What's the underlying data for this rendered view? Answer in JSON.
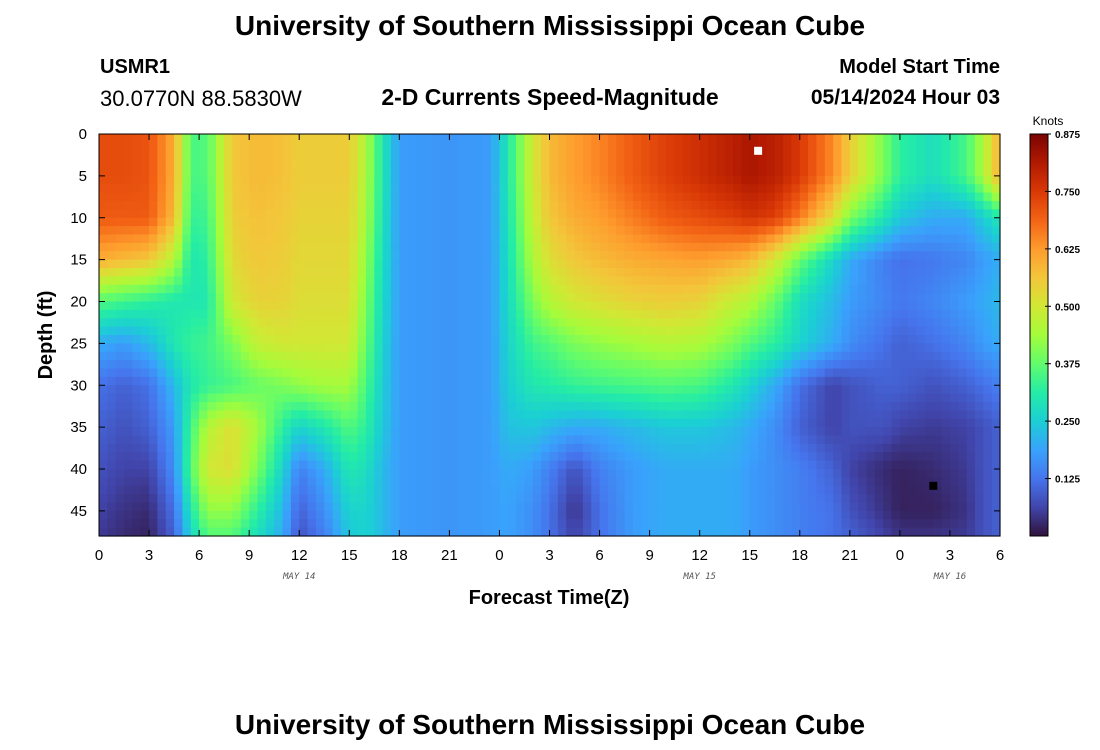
{
  "header": {
    "title": "University of Southern Mississippi Ocean Cube",
    "station_id": "USMR1",
    "coords": "30.0770N  88.5830W",
    "subtitle": "2-D Currents Speed-Magnitude",
    "model_start_label": "Model Start Time",
    "model_start_value": "05/14/2024 Hour 03"
  },
  "footer": {
    "title": "University of Southern Mississippi Ocean Cube"
  },
  "colors": {
    "ramp": [
      "#30123b",
      "#4145ab",
      "#4675ed",
      "#39a2fc",
      "#1bcfd4",
      "#24eca6",
      "#61fc6c",
      "#a4fc3b",
      "#d1e834",
      "#f3c63a",
      "#fe9b2d",
      "#f36315",
      "#d93806",
      "#b11901",
      "#7a0402"
    ],
    "marker_max": "#ffffff",
    "marker_min": "#000000"
  },
  "chart_data": {
    "type": "heatmap",
    "xlabel": "Forecast Time(Z)",
    "ylabel": "Depth (ft)",
    "x_hours": [
      0,
      3,
      6,
      9,
      12,
      15,
      18,
      21,
      24,
      27,
      30,
      33,
      36,
      39,
      42,
      45,
      48,
      51,
      54
    ],
    "x_tick_labels": [
      "0",
      "3",
      "6",
      "9",
      "12",
      "15",
      "18",
      "21",
      "0",
      "3",
      "6",
      "9",
      "12",
      "15",
      "18",
      "21",
      "0",
      "3",
      "6"
    ],
    "date_labels": [
      {
        "text": "MAY 14",
        "hour": 12
      },
      {
        "text": "MAY 15",
        "hour": 36
      },
      {
        "text": "MAY 16",
        "hour": 51
      }
    ],
    "y_ticks": [
      0,
      5,
      10,
      15,
      20,
      25,
      30,
      35,
      40,
      45
    ],
    "ylim": [
      0,
      48
    ],
    "xlim": [
      0,
      54
    ],
    "value_unit": "Knots",
    "colorbar_ticks": [
      0.125,
      0.25,
      0.375,
      0.5,
      0.625,
      0.75,
      0.875
    ],
    "colorbar_tick_labels": [
      "0.125",
      "0.250",
      "0.375",
      "0.500",
      "0.625",
      "0.750",
      "0.875"
    ],
    "vmin": 0.0,
    "vmax": 0.875,
    "depths": [
      0,
      5,
      10,
      15,
      20,
      25,
      30,
      35,
      40,
      45,
      48
    ],
    "hours": [
      0,
      1.5,
      3,
      4.5,
      5.5,
      6.5,
      8,
      9.5,
      11,
      12,
      13.5,
      15,
      16,
      17,
      18,
      21,
      23.5,
      24.5,
      26,
      27,
      28.5,
      30,
      32,
      34,
      36,
      38,
      39,
      40.5,
      42,
      44,
      45,
      47,
      48,
      50,
      52,
      53,
      54
    ],
    "speeds": [
      [
        0.72,
        0.72,
        0.71,
        0.6,
        0.35,
        0.36,
        0.56,
        0.58,
        0.57,
        0.55,
        0.55,
        0.55,
        0.45,
        0.3,
        0.18,
        0.17,
        0.18,
        0.3,
        0.5,
        0.58,
        0.62,
        0.65,
        0.7,
        0.74,
        0.77,
        0.8,
        0.82,
        0.8,
        0.75,
        0.64,
        0.55,
        0.4,
        0.32,
        0.28,
        0.35,
        0.45,
        0.6
      ],
      [
        0.72,
        0.72,
        0.71,
        0.6,
        0.35,
        0.36,
        0.56,
        0.58,
        0.57,
        0.55,
        0.55,
        0.55,
        0.45,
        0.3,
        0.18,
        0.17,
        0.18,
        0.3,
        0.5,
        0.58,
        0.62,
        0.65,
        0.7,
        0.74,
        0.77,
        0.8,
        0.82,
        0.8,
        0.75,
        0.64,
        0.55,
        0.4,
        0.32,
        0.28,
        0.35,
        0.45,
        0.6
      ],
      [
        0.7,
        0.7,
        0.7,
        0.58,
        0.33,
        0.34,
        0.55,
        0.57,
        0.56,
        0.54,
        0.54,
        0.54,
        0.44,
        0.29,
        0.18,
        0.17,
        0.18,
        0.29,
        0.48,
        0.56,
        0.6,
        0.62,
        0.66,
        0.7,
        0.72,
        0.74,
        0.76,
        0.74,
        0.66,
        0.52,
        0.4,
        0.3,
        0.24,
        0.2,
        0.2,
        0.25,
        0.3
      ],
      [
        0.6,
        0.58,
        0.56,
        0.46,
        0.3,
        0.32,
        0.53,
        0.56,
        0.55,
        0.53,
        0.53,
        0.53,
        0.42,
        0.28,
        0.18,
        0.17,
        0.18,
        0.28,
        0.45,
        0.52,
        0.56,
        0.58,
        0.6,
        0.61,
        0.62,
        0.6,
        0.58,
        0.5,
        0.38,
        0.26,
        0.2,
        0.14,
        0.12,
        0.13,
        0.15,
        0.18,
        0.2
      ],
      [
        0.36,
        0.34,
        0.32,
        0.3,
        0.3,
        0.3,
        0.5,
        0.54,
        0.54,
        0.52,
        0.52,
        0.52,
        0.4,
        0.27,
        0.18,
        0.17,
        0.18,
        0.27,
        0.4,
        0.46,
        0.5,
        0.52,
        0.54,
        0.55,
        0.54,
        0.48,
        0.46,
        0.38,
        0.28,
        0.22,
        0.18,
        0.15,
        0.13,
        0.15,
        0.18,
        0.2,
        0.22
      ],
      [
        0.2,
        0.18,
        0.22,
        0.3,
        0.33,
        0.34,
        0.4,
        0.48,
        0.5,
        0.5,
        0.5,
        0.5,
        0.38,
        0.26,
        0.18,
        0.17,
        0.18,
        0.26,
        0.34,
        0.36,
        0.4,
        0.42,
        0.44,
        0.46,
        0.45,
        0.4,
        0.36,
        0.32,
        0.26,
        0.2,
        0.16,
        0.12,
        0.1,
        0.12,
        0.15,
        0.18,
        0.2
      ],
      [
        0.12,
        0.1,
        0.12,
        0.22,
        0.3,
        0.33,
        0.35,
        0.38,
        0.4,
        0.42,
        0.44,
        0.44,
        0.35,
        0.25,
        0.18,
        0.17,
        0.18,
        0.25,
        0.3,
        0.31,
        0.33,
        0.34,
        0.35,
        0.36,
        0.35,
        0.3,
        0.26,
        0.2,
        0.12,
        0.06,
        0.08,
        0.1,
        0.1,
        0.08,
        0.1,
        0.12,
        0.14
      ],
      [
        0.1,
        0.08,
        0.1,
        0.18,
        0.34,
        0.46,
        0.52,
        0.44,
        0.32,
        0.26,
        0.3,
        0.36,
        0.32,
        0.24,
        0.18,
        0.17,
        0.18,
        0.23,
        0.24,
        0.22,
        0.2,
        0.2,
        0.22,
        0.24,
        0.24,
        0.22,
        0.2,
        0.16,
        0.1,
        0.06,
        0.08,
        0.08,
        0.06,
        0.05,
        0.06,
        0.08,
        0.1
      ],
      [
        0.08,
        0.06,
        0.06,
        0.16,
        0.36,
        0.5,
        0.52,
        0.4,
        0.26,
        0.14,
        0.2,
        0.3,
        0.28,
        0.22,
        0.18,
        0.17,
        0.18,
        0.2,
        0.18,
        0.14,
        0.08,
        0.14,
        0.18,
        0.2,
        0.2,
        0.2,
        0.18,
        0.16,
        0.14,
        0.1,
        0.06,
        0.03,
        0.02,
        0.03,
        0.05,
        0.08,
        0.1
      ],
      [
        0.06,
        0.04,
        0.03,
        0.12,
        0.3,
        0.42,
        0.42,
        0.32,
        0.22,
        0.1,
        0.16,
        0.26,
        0.26,
        0.22,
        0.18,
        0.17,
        0.18,
        0.19,
        0.16,
        0.12,
        0.04,
        0.12,
        0.18,
        0.2,
        0.2,
        0.2,
        0.18,
        0.16,
        0.14,
        0.12,
        0.08,
        0.04,
        0.02,
        0.02,
        0.04,
        0.08,
        0.1
      ],
      [
        0.05,
        0.03,
        0.02,
        0.1,
        0.26,
        0.36,
        0.36,
        0.28,
        0.2,
        0.08,
        0.14,
        0.24,
        0.26,
        0.22,
        0.18,
        0.17,
        0.18,
        0.19,
        0.16,
        0.12,
        0.06,
        0.12,
        0.18,
        0.2,
        0.2,
        0.2,
        0.18,
        0.16,
        0.14,
        0.12,
        0.1,
        0.06,
        0.04,
        0.04,
        0.05,
        0.08,
        0.1
      ]
    ],
    "max_marker": {
      "hour": 39.5,
      "depth": 2
    },
    "min_marker": {
      "hour": 50,
      "depth": 42
    }
  }
}
